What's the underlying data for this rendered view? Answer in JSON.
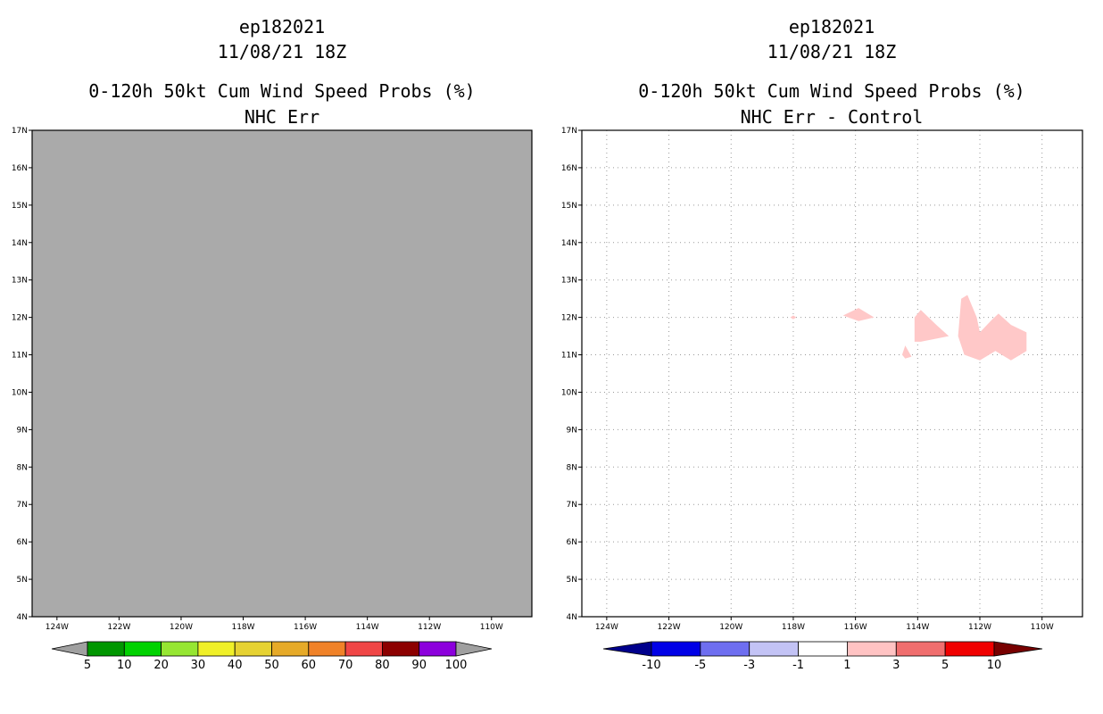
{
  "chart_data": [
    {
      "type": "heatmap",
      "title_lines": [
        "ep182021",
        "11/08/21 18Z",
        "0-120h 50kt Cum Wind Speed Probs (%)",
        "NHC Err"
      ],
      "x_ticks": [
        "124W",
        "122W",
        "120W",
        "118W",
        "116W",
        "114W",
        "112W",
        "110W"
      ],
      "x_values": [
        -124,
        -122,
        -120,
        -118,
        -116,
        -114,
        -112,
        -110
      ],
      "y_ticks": [
        "4N",
        "5N",
        "6N",
        "7N",
        "8N",
        "9N",
        "10N",
        "11N",
        "12N",
        "13N",
        "14N",
        "15N",
        "16N",
        "17N"
      ],
      "y_values": [
        4,
        5,
        6,
        7,
        8,
        9,
        10,
        11,
        12,
        13,
        14,
        15,
        16,
        17
      ],
      "xlim": [
        -124.8,
        -108.7
      ],
      "ylim": [
        4,
        17
      ],
      "grid": false,
      "field_fill": "#aaaaaa",
      "field_note": "entire domain below 5%",
      "colorbar": {
        "labels": [
          "5",
          "10",
          "20",
          "30",
          "40",
          "50",
          "60",
          "70",
          "80",
          "90",
          "100"
        ],
        "under_color": "#a0a0a0",
        "over_color": "#a0a0a0",
        "colors": [
          "#009600",
          "#00d200",
          "#96e632",
          "#f0f028",
          "#e6d232",
          "#e6aa28",
          "#f08228",
          "#f04646",
          "#8c0000",
          "#8c00dc"
        ]
      },
      "polygons": []
    },
    {
      "type": "heatmap",
      "title_lines": [
        "ep182021",
        "11/08/21 18Z",
        "0-120h 50kt Cum Wind Speed Probs (%)",
        "NHC Err - Control"
      ],
      "x_ticks": [
        "124W",
        "122W",
        "120W",
        "118W",
        "116W",
        "114W",
        "112W",
        "110W"
      ],
      "x_values": [
        -124,
        -122,
        -120,
        -118,
        -116,
        -114,
        -112,
        -110
      ],
      "y_ticks": [
        "4N",
        "5N",
        "6N",
        "7N",
        "8N",
        "9N",
        "10N",
        "11N",
        "12N",
        "13N",
        "14N",
        "15N",
        "16N",
        "17N"
      ],
      "y_values": [
        4,
        5,
        6,
        7,
        8,
        9,
        10,
        11,
        12,
        13,
        14,
        15,
        16,
        17
      ],
      "xlim": [
        -124.8,
        -108.7
      ],
      "ylim": [
        4,
        17
      ],
      "grid": true,
      "field_fill": "#ffffff",
      "field_note": "difference field, mostly between -1 and 1",
      "colorbar": {
        "labels": [
          "-10",
          "-5",
          "-3",
          "-1",
          "1",
          "3",
          "5",
          "10"
        ],
        "under_color": "#00008c",
        "over_color": "#780000",
        "colors": [
          "#0000e6",
          "#6e6ef0",
          "#c3c3f5",
          "#ffffff",
          "#ffc3c3",
          "#f06e6e",
          "#f00000"
        ]
      },
      "polygons": [
        {
          "name": "anomaly-region-118w",
          "level": "1 to 3",
          "color": "#ffc8c8",
          "points": [
            [
              -118.1,
              12.0
            ],
            [
              -118.0,
              12.05
            ],
            [
              -117.9,
              12.0
            ],
            [
              -118.0,
              11.95
            ]
          ]
        },
        {
          "name": "anomaly-region-116w",
          "level": "1 to 3",
          "color": "#ffc8c8",
          "points": [
            [
              -116.4,
              12.05
            ],
            [
              -115.9,
              12.25
            ],
            [
              -115.4,
              12.0
            ],
            [
              -115.9,
              11.9
            ]
          ]
        },
        {
          "name": "anomaly-region-114w",
          "level": "1 to 3",
          "color": "#ffc8c8",
          "points": [
            [
              -114.1,
              12.0
            ],
            [
              -113.9,
              12.2
            ],
            [
              -113.4,
              11.8
            ],
            [
              -113.0,
              11.5
            ],
            [
              -113.9,
              11.35
            ],
            [
              -114.1,
              11.35
            ]
          ]
        },
        {
          "name": "anomaly-region-114w-small",
          "level": "1 to 3",
          "color": "#ffc8c8",
          "points": [
            [
              -114.5,
              11.0
            ],
            [
              -114.4,
              11.25
            ],
            [
              -114.2,
              10.95
            ],
            [
              -114.4,
              10.9
            ]
          ]
        },
        {
          "name": "anomaly-region-112w",
          "level": "1 to 3",
          "color": "#ffc8c8",
          "points": [
            [
              -112.6,
              12.5
            ],
            [
              -112.4,
              12.6
            ],
            [
              -112.1,
              12.0
            ],
            [
              -112.0,
              11.6
            ],
            [
              -111.6,
              11.95
            ],
            [
              -111.4,
              12.1
            ],
            [
              -111.0,
              11.8
            ],
            [
              -110.5,
              11.6
            ],
            [
              -110.5,
              11.1
            ],
            [
              -111.0,
              10.85
            ],
            [
              -111.5,
              11.1
            ],
            [
              -112.0,
              10.85
            ],
            [
              -112.5,
              11.0
            ],
            [
              -112.7,
              11.5
            ]
          ]
        }
      ]
    }
  ]
}
